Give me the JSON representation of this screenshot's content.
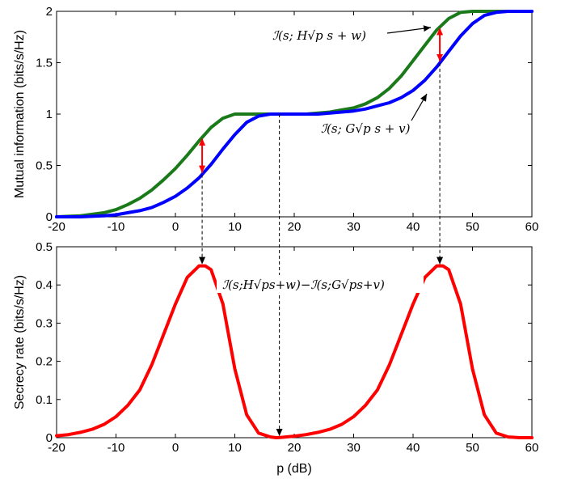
{
  "chart_data": [
    {
      "type": "line",
      "title": "",
      "xlabel": "",
      "ylabel": "Mutual information (bits/s/Hz)",
      "xlim": [
        -20,
        60
      ],
      "ylim": [
        0,
        2
      ],
      "xticks": [
        -20,
        -10,
        0,
        10,
        20,
        30,
        40,
        50,
        60
      ],
      "yticks": [
        0,
        0.5,
        1,
        1.5,
        2
      ],
      "xtick_labels": [
        "-20",
        "-10",
        "0",
        "10",
        "20",
        "30",
        "40",
        "50",
        "60"
      ],
      "ytick_labels": [
        "0",
        "0.5",
        "1",
        "1.5",
        "2"
      ],
      "grid": false,
      "series": [
        {
          "color": "#1a7a1a",
          "x": [
            -20,
            -16,
            -12,
            -10,
            -8,
            -6,
            -4,
            -2,
            0,
            2,
            4,
            6,
            8,
            10,
            12,
            14,
            16,
            18,
            20,
            22,
            24,
            26,
            28,
            30,
            32,
            34,
            36,
            38,
            40,
            42,
            44,
            46,
            48,
            50,
            52,
            54,
            56,
            60
          ],
          "values": [
            0,
            0.01,
            0.04,
            0.07,
            0.12,
            0.18,
            0.26,
            0.36,
            0.47,
            0.6,
            0.74,
            0.87,
            0.96,
            1.0,
            1.0,
            1.0,
            1.0,
            1.0,
            1.0,
            1.0,
            1.01,
            1.02,
            1.04,
            1.06,
            1.1,
            1.16,
            1.25,
            1.37,
            1.52,
            1.67,
            1.82,
            1.93,
            1.99,
            2.0,
            2.0,
            2.0,
            2.0,
            2.0
          ]
        },
        {
          "color": "#0000ff",
          "x": [
            -20,
            -16,
            -12,
            -10,
            -8,
            -6,
            -4,
            -2,
            0,
            2,
            4,
            6,
            8,
            10,
            12,
            14,
            16,
            18,
            20,
            22,
            24,
            26,
            28,
            30,
            32,
            34,
            36,
            38,
            40,
            42,
            44,
            46,
            48,
            50,
            52,
            54,
            56,
            60
          ],
          "values": [
            0,
            0,
            0.01,
            0.02,
            0.04,
            0.06,
            0.09,
            0.14,
            0.2,
            0.28,
            0.38,
            0.51,
            0.66,
            0.8,
            0.92,
            0.98,
            1.0,
            1.0,
            1.0,
            1.0,
            1.0,
            1.01,
            1.02,
            1.03,
            1.05,
            1.08,
            1.11,
            1.16,
            1.23,
            1.33,
            1.46,
            1.61,
            1.76,
            1.88,
            1.96,
            1.99,
            2.0,
            2.0
          ]
        }
      ],
      "annotations": [
        {
          "text": "ℐ(s; H√p s + w)"
        },
        {
          "text": "ℐ(s; G√p s + v)"
        }
      ]
    },
    {
      "type": "line",
      "title": "",
      "xlabel": "p (dB)",
      "ylabel": "Secrecy rate (bits/s/Hz)",
      "xlim": [
        -20,
        60
      ],
      "ylim": [
        0,
        0.5
      ],
      "xticks": [
        -20,
        -10,
        0,
        10,
        20,
        30,
        40,
        50,
        60
      ],
      "yticks": [
        0,
        0.1,
        0.2,
        0.3,
        0.4,
        0.5
      ],
      "xtick_labels": [
        "-20",
        "-10",
        "0",
        "10",
        "20",
        "30",
        "40",
        "50",
        "60"
      ],
      "ytick_labels": [
        "0",
        "0.1",
        "0.2",
        "0.3",
        "0.4",
        "0.5"
      ],
      "grid": false,
      "series": [
        {
          "color": "#ff0000",
          "x": [
            -20,
            -18,
            -16,
            -14,
            -12,
            -10,
            -8,
            -6,
            -4,
            -2,
            0,
            2,
            4,
            5,
            6,
            8,
            10,
            12,
            14,
            16,
            17,
            18,
            20,
            22,
            24,
            26,
            28,
            30,
            32,
            34,
            36,
            38,
            40,
            42,
            44,
            45,
            46,
            48,
            50,
            52,
            54,
            56,
            58,
            60
          ],
          "values": [
            0.005,
            0.008,
            0.014,
            0.022,
            0.035,
            0.055,
            0.085,
            0.125,
            0.19,
            0.27,
            0.35,
            0.42,
            0.45,
            0.45,
            0.44,
            0.35,
            0.18,
            0.06,
            0.012,
            0.002,
            0.0,
            0.001,
            0.004,
            0.008,
            0.014,
            0.022,
            0.035,
            0.055,
            0.085,
            0.125,
            0.19,
            0.27,
            0.35,
            0.42,
            0.45,
            0.45,
            0.44,
            0.35,
            0.18,
            0.06,
            0.012,
            0.002,
            0.0,
            0.0
          ]
        }
      ],
      "annotations": [
        {
          "text": "ℐ(s;H√ps+w)−ℐ(s;G√ps+v)"
        }
      ]
    }
  ]
}
